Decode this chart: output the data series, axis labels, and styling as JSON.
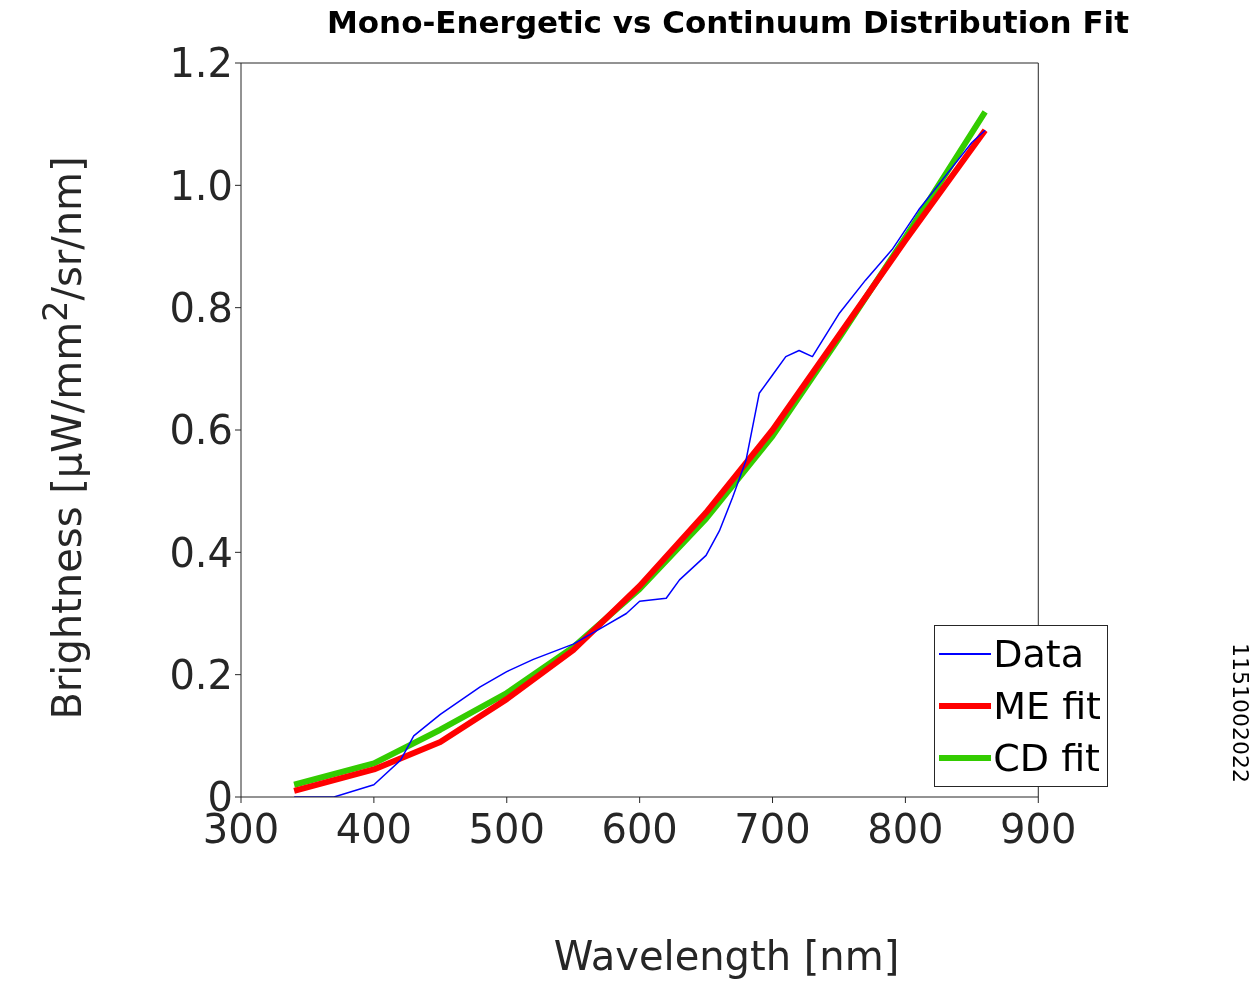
{
  "chart_data": {
    "type": "line",
    "title": "Mono-Energetic vs Continuum Distribution Fit",
    "xlabel": "Wavelength [nm]",
    "ylabel": "Brightness [μW/mm$^{2}$/sr/nm]",
    "annotations": [
      "1151002022"
    ],
    "xlim": [
      300,
      900
    ],
    "xticks": [
      300,
      400,
      500,
      600,
      700,
      800,
      900
    ],
    "ylim": [
      0,
      1.2
    ],
    "yticks": [
      0,
      {
        "value": 0.2,
        "label": "0.2"
      },
      {
        "value": 0.4,
        "label": "0.4"
      },
      {
        "value": 0.6,
        "label": "0.6"
      },
      {
        "value": 0.8,
        "label": "0.8"
      },
      {
        "value": 1,
        "label": "1.0"
      },
      {
        "value": 1.2,
        "label": "1.2"
      }
    ],
    "grid": false,
    "legend": "bottom right",
    "marker": "none",
    "line_style": "solid",
    "series": [
      {
        "name": "Data",
        "color": "#0000ff",
        "x": [
          340,
          370,
          400,
          420,
          430,
          450,
          480,
          500,
          520,
          550,
          570,
          590,
          600,
          620,
          630,
          650,
          660,
          670,
          680,
          690,
          700,
          710,
          720,
          730,
          750,
          770,
          790,
          810,
          830,
          850,
          860
        ],
        "values": [
          0,
          0,
          0.02,
          0.06,
          0.1,
          0.135,
          0.18,
          0.205,
          0.225,
          0.25,
          0.275,
          0.3,
          0.32,
          0.325,
          0.355,
          0.395,
          0.435,
          0.49,
          0.55,
          0.66,
          0.69,
          0.72,
          0.73,
          0.72,
          0.79,
          0.845,
          0.895,
          0.96,
          1.015,
          1.07,
          1.09
        ]
      },
      {
        "name": "ME fit",
        "color": "#ff0000",
        "x": [
          340,
          400,
          450,
          500,
          550,
          600,
          650,
          700,
          750,
          800,
          860
        ],
        "values": [
          0.01,
          0.045,
          0.09,
          0.16,
          0.24,
          0.345,
          0.465,
          0.6,
          0.755,
          0.91,
          1.09
        ]
      },
      {
        "name": "CD fit",
        "color": "#33cc00",
        "x": [
          340,
          400,
          450,
          500,
          550,
          600,
          650,
          700,
          750,
          800,
          860
        ],
        "values": [
          0.02,
          0.055,
          0.11,
          0.17,
          0.245,
          0.34,
          0.455,
          0.59,
          0.75,
          0.915,
          1.12
        ]
      }
    ]
  }
}
